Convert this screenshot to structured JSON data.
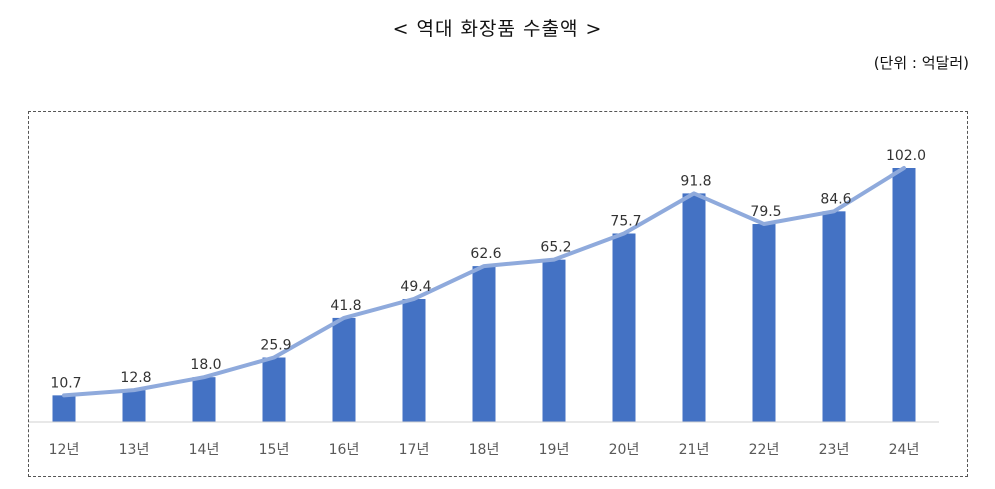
{
  "page": {
    "title": "< 역대 화장품 수출액 >",
    "unit_note": "(단위 : 억달러)"
  },
  "colors": {
    "bar": "#4472C4",
    "line": "#8FAADC",
    "axis": "#d0d0d0",
    "text": "#333333"
  },
  "chart_data": {
    "type": "bar",
    "title": "< 역대 화장품 수출액 >",
    "unit": "(단위 : 억달러)",
    "categories": [
      "12년",
      "13년",
      "14년",
      "15년",
      "16년",
      "17년",
      "18년",
      "19년",
      "20년",
      "21년",
      "22년",
      "23년",
      "24년"
    ],
    "series": [
      {
        "type": "bar",
        "values": [
          10.7,
          12.8,
          18.0,
          25.9,
          41.8,
          49.4,
          62.6,
          65.2,
          75.7,
          91.8,
          79.5,
          84.6,
          102.0
        ]
      },
      {
        "type": "line",
        "values": [
          10.7,
          12.8,
          18.0,
          25.9,
          41.8,
          49.4,
          62.6,
          65.2,
          75.7,
          91.8,
          79.5,
          84.6,
          102.0
        ]
      }
    ],
    "data_labels": [
      "10.7",
      "12.8",
      "18.0",
      "25.9",
      "41.8",
      "49.4",
      "62.6",
      "65.2",
      "75.7",
      "91.8",
      "79.5",
      "84.6",
      "102.0"
    ],
    "ylim": [
      0,
      102
    ],
    "grid": false,
    "legend": "none"
  }
}
